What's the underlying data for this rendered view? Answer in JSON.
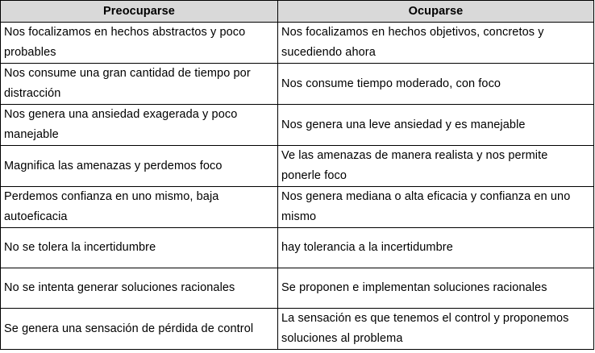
{
  "table": {
    "header": [
      "Preocuparse",
      "Ocuparse"
    ],
    "rows": [
      [
        "Nos focalizamos en hechos abstractos y poco probables",
        "Nos focalizamos en hechos objetivos, concretos y sucediendo ahora"
      ],
      [
        "Nos consume una gran cantidad de tiempo por distracción",
        "Nos consume tiempo moderado, con foco"
      ],
      [
        "Nos genera una ansiedad exagerada y poco manejable",
        "Nos genera una leve ansiedad y es manejable"
      ],
      [
        "Magnifica las amenazas y perdemos foco",
        "Ve las amenazas de manera realista y nos permite ponerle foco"
      ],
      [
        "Perdemos confianza en uno mismo, baja autoeficacia",
        "Nos genera mediana o alta eficacia y confianza en uno mismo"
      ],
      [
        "No se tolera la incertidumbre",
        "hay tolerancia a la incertidumbre"
      ],
      [
        "No se intenta generar soluciones racionales",
        "Se proponen e implementan soluciones racionales"
      ],
      [
        "Se genera una sensación de pérdida de control",
        "La sensación es que tenemos el control y proponemos soluciones al problema"
      ]
    ]
  }
}
